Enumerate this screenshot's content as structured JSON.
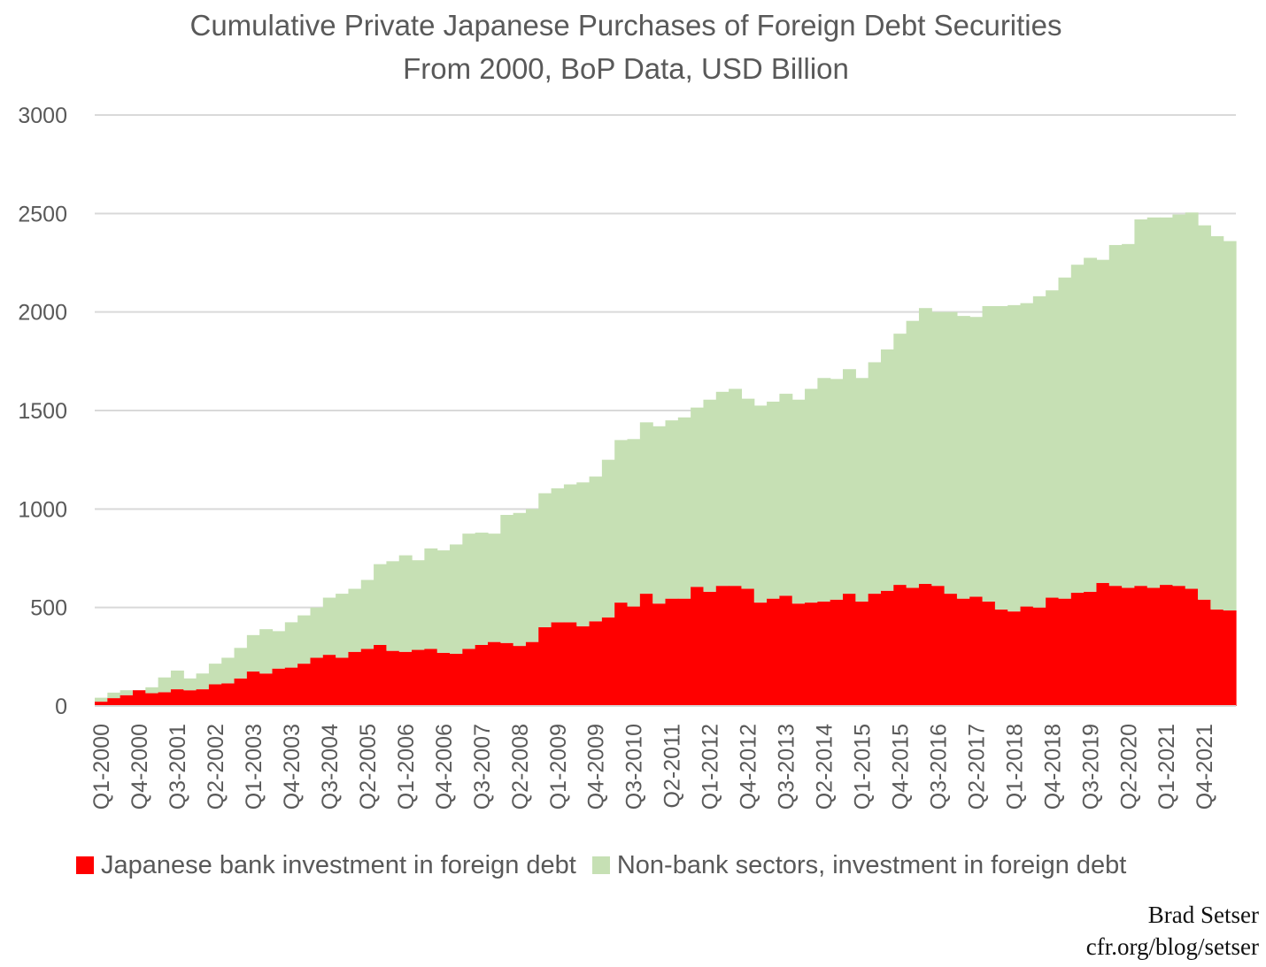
{
  "title": {
    "line1": "Cumulative Private Japanese Purchases of Foreign Debt Securities",
    "line2": "From 2000, BoP Data, USD Billion"
  },
  "credit": {
    "line1": "Brad Setser",
    "line2": "cfr.org/blog/setser"
  },
  "colors": {
    "bank": "#ff0000",
    "nonbank": "#c6e0b4",
    "grid": "#d9d9d9",
    "text": "#595959"
  },
  "chart_data": {
    "type": "bar",
    "stacked": true,
    "title": "Cumulative Private Japanese Purchases of Foreign Debt Securities From 2000, BoP Data, USD Billion",
    "ylim": [
      0,
      3000
    ],
    "yticks": [
      0,
      500,
      1000,
      1500,
      2000,
      2500,
      3000
    ],
    "grid": true,
    "legend_position": "bottom",
    "x_tick_labels": [
      "Q1-2000",
      "Q4-2000",
      "Q3-2001",
      "Q2-2002",
      "Q1-2003",
      "Q4-2003",
      "Q3-2004",
      "Q2-2005",
      "Q1-2006",
      "Q4-2006",
      "Q3-2007",
      "Q2-2008",
      "Q1-2009",
      "Q4-2009",
      "Q3-2010",
      "Q2-2011",
      "Q1-2012",
      "Q4-2012",
      "Q3-2013",
      "Q2-2014",
      "Q1-2015",
      "Q4-2015",
      "Q3-2016",
      "Q2-2017",
      "Q1-2018",
      "Q4-2018",
      "Q3-2019",
      "Q2-2020",
      "Q1-2021",
      "Q4-2021"
    ],
    "categories": [
      "Q1-2000",
      "Q2-2000",
      "Q3-2000",
      "Q4-2000",
      "Q1-2001",
      "Q2-2001",
      "Q3-2001",
      "Q4-2001",
      "Q1-2002",
      "Q2-2002",
      "Q3-2002",
      "Q4-2002",
      "Q1-2003",
      "Q2-2003",
      "Q3-2003",
      "Q4-2003",
      "Q1-2004",
      "Q2-2004",
      "Q3-2004",
      "Q4-2004",
      "Q1-2005",
      "Q2-2005",
      "Q3-2005",
      "Q4-2005",
      "Q1-2006",
      "Q2-2006",
      "Q3-2006",
      "Q4-2006",
      "Q1-2007",
      "Q2-2007",
      "Q3-2007",
      "Q4-2007",
      "Q1-2008",
      "Q2-2008",
      "Q3-2008",
      "Q4-2008",
      "Q1-2009",
      "Q2-2009",
      "Q3-2009",
      "Q4-2009",
      "Q1-2010",
      "Q2-2010",
      "Q3-2010",
      "Q4-2010",
      "Q1-2011",
      "Q2-2011",
      "Q3-2011",
      "Q4-2011",
      "Q1-2012",
      "Q2-2012",
      "Q3-2012",
      "Q4-2012",
      "Q1-2013",
      "Q2-2013",
      "Q3-2013",
      "Q4-2013",
      "Q1-2014",
      "Q2-2014",
      "Q3-2014",
      "Q4-2014",
      "Q1-2015",
      "Q2-2015",
      "Q3-2015",
      "Q4-2015",
      "Q1-2016",
      "Q2-2016",
      "Q3-2016",
      "Q4-2016",
      "Q1-2017",
      "Q2-2017",
      "Q3-2017",
      "Q4-2017",
      "Q1-2018",
      "Q2-2018",
      "Q3-2018",
      "Q4-2018",
      "Q1-2019",
      "Q2-2019",
      "Q3-2019",
      "Q4-2019",
      "Q1-2020",
      "Q2-2020",
      "Q3-2020",
      "Q4-2020",
      "Q1-2021",
      "Q2-2021",
      "Q3-2021",
      "Q4-2021",
      "Q1-2022",
      "Q2-2022"
    ],
    "series": [
      {
        "name": "Japanese bank investment in foreign debt",
        "values": [
          22,
          40,
          55,
          80,
          65,
          70,
          85,
          80,
          85,
          110,
          115,
          140,
          175,
          165,
          190,
          195,
          215,
          245,
          260,
          245,
          275,
          290,
          310,
          280,
          275,
          285,
          290,
          270,
          265,
          290,
          310,
          325,
          320,
          305,
          325,
          400,
          425,
          425,
          405,
          430,
          450,
          525,
          505,
          570,
          520,
          545,
          545,
          605,
          580,
          610,
          610,
          595,
          525,
          545,
          560,
          520,
          525,
          530,
          540,
          570,
          530,
          570,
          585,
          615,
          600,
          620,
          610,
          570,
          545,
          555,
          530,
          490,
          480,
          505,
          500,
          550,
          545,
          575,
          580,
          625,
          610,
          600,
          610,
          600,
          615,
          610,
          595,
          540,
          490,
          485
        ]
      },
      {
        "name": "Non-bank sectors, investment in foreign debt",
        "values": [
          20,
          28,
          25,
          -5,
          30,
          75,
          95,
          60,
          80,
          105,
          130,
          155,
          185,
          225,
          190,
          230,
          245,
          255,
          290,
          325,
          320,
          350,
          410,
          455,
          490,
          455,
          510,
          520,
          555,
          585,
          570,
          550,
          650,
          675,
          675,
          680,
          680,
          700,
          730,
          735,
          800,
          825,
          850,
          870,
          900,
          905,
          920,
          910,
          975,
          985,
          1000,
          965,
          1000,
          1000,
          1025,
          1035,
          1085,
          1135,
          1120,
          1140,
          1135,
          1175,
          1225,
          1275,
          1355,
          1400,
          1390,
          1430,
          1435,
          1420,
          1500,
          1540,
          1555,
          1540,
          1580,
          1560,
          1630,
          1665,
          1695,
          1640,
          1730,
          1745,
          1860,
          1880,
          1865,
          1885,
          1910,
          1900,
          1895,
          1875
        ]
      }
    ]
  }
}
